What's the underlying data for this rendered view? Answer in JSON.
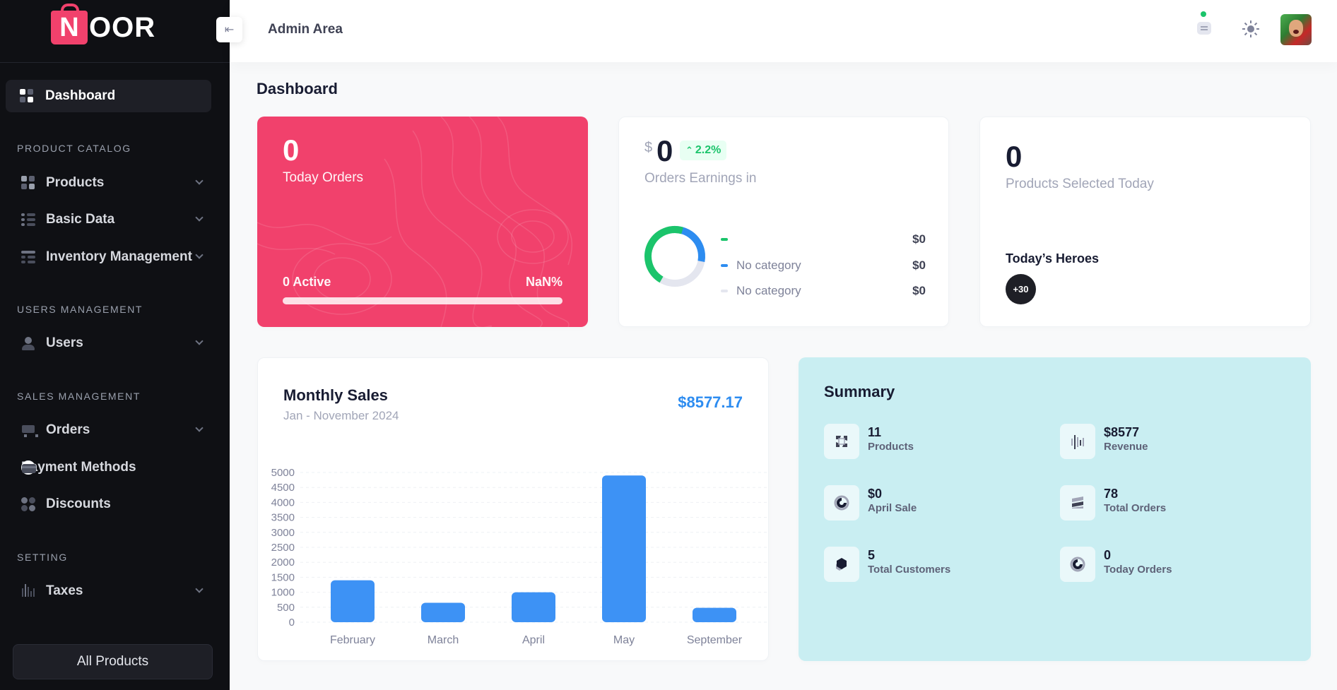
{
  "brand": {
    "logo_letter": "N",
    "logo_rest": "OOR",
    "accent": "#f1416c"
  },
  "sidebar": {
    "active_item": "Dashboard",
    "sections": [
      {
        "label": "PRODUCT CATALOG",
        "items": [
          {
            "label": "Products",
            "icon": "products-icon",
            "expandable": true
          },
          {
            "label": "Basic Data",
            "icon": "basic-data-icon",
            "expandable": true
          },
          {
            "label": "Inventory Management",
            "icon": "inventory-icon",
            "expandable": true
          }
        ]
      },
      {
        "label": "USERS MANAGEMENT",
        "items": [
          {
            "label": "Users",
            "icon": "user-icon",
            "expandable": true
          }
        ]
      },
      {
        "label": "SALES MANAGEMENT",
        "items": [
          {
            "label": "Orders",
            "icon": "cart-icon",
            "expandable": true
          },
          {
            "label": "Payment Methods",
            "icon": "credit-card-icon",
            "expandable": false
          },
          {
            "label": "Discounts",
            "icon": "discount-icon",
            "expandable": false
          }
        ]
      },
      {
        "label": "SETTING",
        "items": [
          {
            "label": "Taxes",
            "icon": "taxes-icon",
            "expandable": true
          }
        ]
      }
    ],
    "footer_button": "All Products"
  },
  "header": {
    "title": "Admin Area",
    "notification_dot_color": "#1bc46b"
  },
  "page": {
    "title": "Dashboard"
  },
  "today_orders": {
    "value": "0",
    "label": "Today Orders",
    "active": "0 Active",
    "percent": "NaN%",
    "progress": 1.0,
    "color": "#f1416c"
  },
  "earnings": {
    "currency": "$",
    "value": "0",
    "change": "2.2%",
    "label": "Orders Earnings in",
    "legend": [
      {
        "label": "",
        "value": "$0",
        "color": "#1bc46b"
      },
      {
        "label": "No category",
        "value": "$0",
        "color": "#2d8cf0"
      },
      {
        "label": "No category",
        "value": "$0",
        "color": "#e4e6ef"
      }
    ]
  },
  "products_today": {
    "value": "0",
    "label": "Products Selected Today",
    "heroes_title": "Today’s Heroes",
    "heroes_badge": "+30"
  },
  "monthly_sales": {
    "title": "Monthly Sales",
    "subtitle": "Jan - November 2024",
    "total": "$8577.17",
    "color": "#3d92f5"
  },
  "chart_data": {
    "type": "bar",
    "categories": [
      "February",
      "March",
      "April",
      "May",
      "September"
    ],
    "values": [
      1400,
      650,
      1000,
      4900,
      480
    ],
    "ylim": [
      0,
      5000
    ],
    "yticks": [
      0,
      500,
      1000,
      1500,
      2000,
      2500,
      3000,
      3500,
      4000,
      4500,
      5000
    ],
    "grid": true
  },
  "summary": {
    "title": "Summary",
    "items": [
      {
        "value": "11",
        "label": "Products",
        "icon": "products-cube-icon"
      },
      {
        "value": "$8577",
        "label": "Revenue",
        "icon": "revenue-bars-icon"
      },
      {
        "value": "$0",
        "label": "April Sale",
        "icon": "sale-swirl-icon"
      },
      {
        "value": "78",
        "label": "Total Orders",
        "icon": "orders-stack-icon"
      },
      {
        "value": "5",
        "label": "Total Customers",
        "icon": "customers-hex-icon"
      },
      {
        "value": "0",
        "label": "Today Orders",
        "icon": "today-orders-swirl-icon"
      }
    ]
  }
}
